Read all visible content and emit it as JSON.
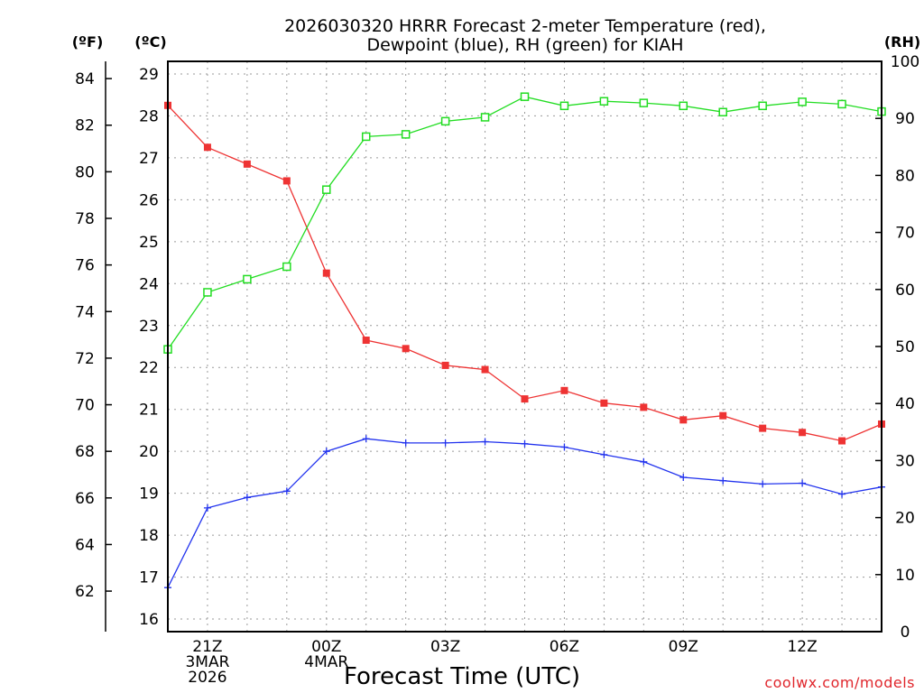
{
  "chart_data": {
    "type": "line",
    "title": [
      "2026030320 HRRR Forecast 2-meter Temperature (red),",
      "Dewpoint (blue), RH (green) for KIAH"
    ],
    "xlabel": "Forecast Time (UTC)",
    "units": {
      "fahrenheit": "(ºF)",
      "celsius": "(ºC)",
      "rh": "(RH)"
    },
    "x": [
      "2026-03-03 20Z",
      "2026-03-03 21Z",
      "2026-03-03 22Z",
      "2026-03-03 23Z",
      "2026-03-04 00Z",
      "2026-03-04 01Z",
      "2026-03-04 02Z",
      "2026-03-04 03Z",
      "2026-03-04 04Z",
      "2026-03-04 05Z",
      "2026-03-04 06Z",
      "2026-03-04 07Z",
      "2026-03-04 08Z",
      "2026-03-04 09Z",
      "2026-03-04 10Z",
      "2026-03-04 11Z",
      "2026-03-04 12Z",
      "2026-03-04 13Z",
      "2026-03-04 14Z"
    ],
    "x_ticks": [
      {
        "x": "2026-03-03 21Z",
        "lines": [
          "21Z",
          "3MAR",
          "2026"
        ]
      },
      {
        "x": "2026-03-04 00Z",
        "lines": [
          "00Z",
          "4MAR"
        ]
      },
      {
        "x": "2026-03-04 03Z",
        "lines": [
          "03Z"
        ]
      },
      {
        "x": "2026-03-04 06Z",
        "lines": [
          "06Z"
        ]
      },
      {
        "x": "2026-03-04 09Z",
        "lines": [
          "09Z"
        ]
      },
      {
        "x": "2026-03-04 12Z",
        "lines": [
          "12Z"
        ]
      }
    ],
    "y_celsius": {
      "range": [
        15.7,
        29.3
      ],
      "ticks": [
        16,
        17,
        18,
        19,
        20,
        21,
        22,
        23,
        24,
        25,
        26,
        27,
        28,
        29
      ]
    },
    "y_fahrenheit": {
      "ticks": [
        62,
        64,
        66,
        68,
        70,
        72,
        74,
        76,
        78,
        80,
        82,
        84
      ]
    },
    "y_rh": {
      "range": [
        0,
        100
      ],
      "ticks": [
        0,
        10,
        20,
        30,
        40,
        50,
        60,
        70,
        80,
        90,
        100
      ]
    },
    "grid": true,
    "series": [
      {
        "name": "Temperature",
        "axis": "celsius",
        "color": "#ee3333",
        "marker": "filled-square",
        "values": [
          28.25,
          27.25,
          26.85,
          26.45,
          24.25,
          22.65,
          22.45,
          22.05,
          21.95,
          21.25,
          21.45,
          21.15,
          21.05,
          20.75,
          20.85,
          20.55,
          20.45,
          20.25,
          20.65
        ]
      },
      {
        "name": "Dewpoint",
        "axis": "celsius",
        "color": "#2233ee",
        "marker": "plus",
        "values": [
          16.75,
          18.65,
          18.9,
          19.05,
          20.0,
          20.3,
          20.2,
          20.2,
          20.23,
          20.18,
          20.1,
          19.92,
          19.75,
          19.38,
          19.3,
          19.22,
          19.24,
          18.98,
          19.15
        ]
      },
      {
        "name": "RH",
        "axis": "rh",
        "color": "#22dd22",
        "marker": "open-square",
        "values": [
          49.5,
          59.5,
          61.8,
          64.0,
          77.5,
          86.8,
          87.2,
          89.5,
          90.2,
          93.8,
          92.2,
          93.0,
          92.7,
          92.2,
          91.1,
          92.2,
          92.9,
          92.5,
          91.2
        ]
      }
    ]
  },
  "watermark": "coolwx.com/models"
}
